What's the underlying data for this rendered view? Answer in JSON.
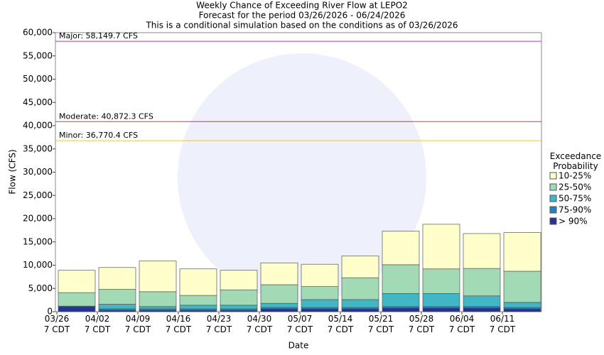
{
  "chart_data": {
    "type": "stacked_bar",
    "title": "Weekly Chance of Exceeding River Flow at LEPO2",
    "subtitle": "Forecast for the period 03/26/2026 - 06/24/2026",
    "note": "This is a conditional simulation based on the conditions as of 03/26/2026",
    "y_label": "Flow (CFS)",
    "x_label": "Date",
    "legend_title": "Exceedance Probability",
    "categories": [
      "03/26\n7 CDT",
      "04/02\n7 CDT",
      "04/09\n7 CDT",
      "04/16\n7 CDT",
      "04/23\n7 CDT",
      "04/30\n7 CDT",
      "05/07\n7 CDT",
      "05/14\n7 CDT",
      "05/21\n7 CDT",
      "05/28\n7 CDT",
      "06/04\n7 CDT",
      "06/11\n7 CDT"
    ],
    "series": [
      {
        "name": "10-25%",
        "color": "#ffffcc",
        "values": [
          4800,
          4700,
          6600,
          5700,
          4200,
          4700,
          4800,
          4700,
          7200,
          9600,
          7500,
          8300
        ]
      },
      {
        "name": "25-50%",
        "color": "#a1dab4",
        "values": [
          2900,
          3200,
          3200,
          2100,
          3300,
          4000,
          2800,
          4700,
          6200,
          5300,
          5900,
          6700
        ]
      },
      {
        "name": "50-75%",
        "color": "#41b6c4",
        "values": [
          50,
          1000,
          500,
          800,
          800,
          900,
          1700,
          1700,
          2800,
          2800,
          2300,
          1100
        ]
      },
      {
        "name": "75-90%",
        "color": "#2c7fb8",
        "values": [
          50,
          300,
          300,
          300,
          300,
          300,
          300,
          300,
          300,
          300,
          300,
          300
        ]
      },
      {
        "name": "> 90%",
        "color": "#253494",
        "values": [
          1100,
          300,
          300,
          300,
          300,
          600,
          600,
          600,
          800,
          800,
          800,
          600
        ]
      }
    ],
    "thresholds": [
      {
        "label": "Major: 58,149.7 CFS",
        "value": 58149.7,
        "color": "#cc33cc"
      },
      {
        "label": "Moderate: 40,872.3 CFS",
        "value": 40872.3,
        "color": "#dd3333"
      },
      {
        "label": "Minor: 36,770.4 CFS",
        "value": 36770.4,
        "color": "#e6d020"
      }
    ],
    "ylim": [
      0,
      60000
    ],
    "yticks": [
      0,
      {
        "value": 5000,
        "label": "5,000"
      },
      {
        "value": 10000,
        "label": "10,000"
      },
      {
        "value": 15000,
        "label": "15,000"
      },
      {
        "value": 20000,
        "label": "20,000"
      },
      {
        "value": 25000,
        "label": "25,000"
      },
      {
        "value": 30000,
        "label": "30,000"
      },
      {
        "value": 35000,
        "label": "35,000"
      },
      {
        "value": 40000,
        "label": "40,000"
      },
      {
        "value": 45000,
        "label": "45,000"
      },
      {
        "value": 50000,
        "label": "50,000"
      },
      {
        "value": 55000,
        "label": "55,000"
      },
      {
        "value": 60000,
        "label": "60,000"
      }
    ]
  }
}
